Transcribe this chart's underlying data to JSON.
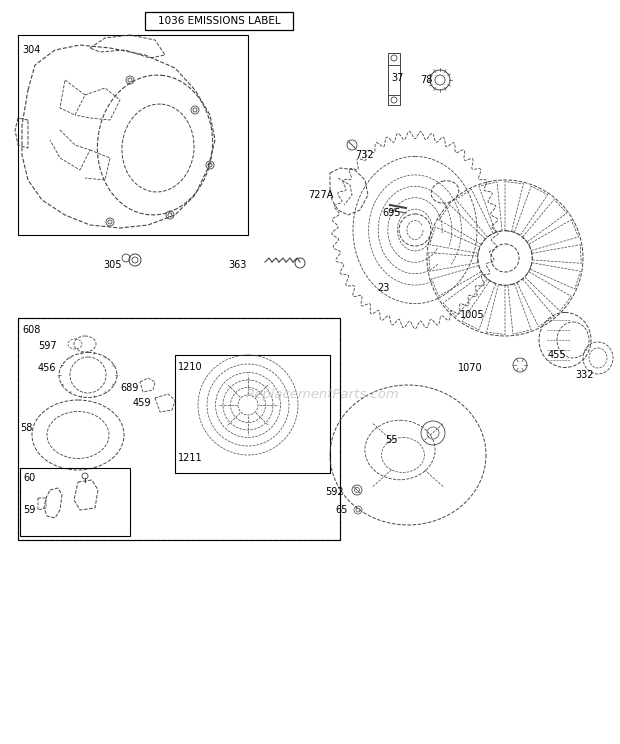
{
  "title": "1036 EMISSIONS LABEL",
  "bg_color": "#ffffff",
  "line_color": "#444444",
  "watermark": "ReplacementParts.com",
  "fig_w": 6.2,
  "fig_h": 7.44,
  "dpi": 100
}
